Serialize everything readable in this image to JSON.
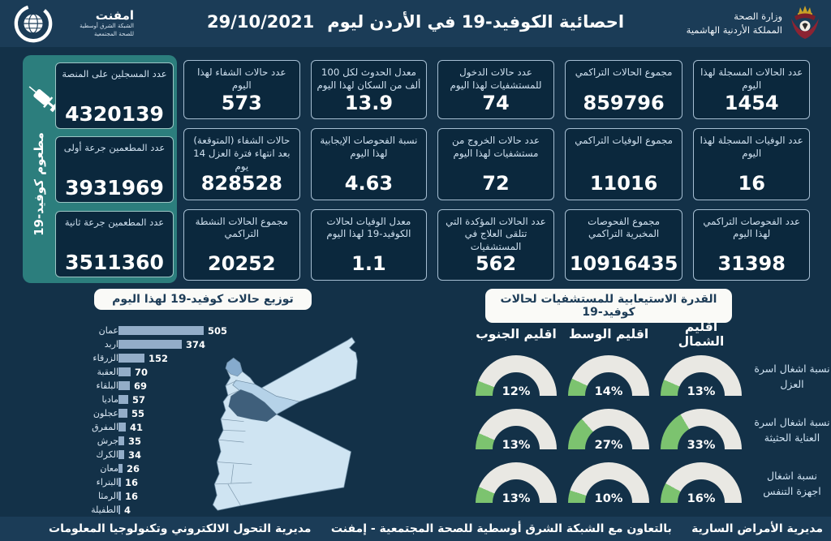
{
  "header": {
    "title": "احصائية الكوفيد-19 في الأردن ليوم",
    "date": "29/10/2021",
    "logo_name": "امفنت",
    "logo_sub1": "الشبكة الشرق أوسطية",
    "logo_sub2": "للصحة المجتمعية",
    "ministry_line1": "وزارة الصحة",
    "ministry_line2": "المملكة الأردنية الهاشمية"
  },
  "vaccination_panel": {
    "side_label": "مطعوم كوفيد-19",
    "cards": [
      {
        "title": "عدد المسجلين على المنصة",
        "value": "4320139"
      },
      {
        "title": "عدد المطعمين جرعة أولى",
        "value": "3931969"
      },
      {
        "title": "عدد المطعمين جرعة ثانية",
        "value": "3511360"
      }
    ]
  },
  "stat_cards": [
    {
      "title": "عدد الحالات المسجلة لهذا اليوم",
      "value": "1454"
    },
    {
      "title": "مجموع الحالات التراكمي",
      "value": "859796"
    },
    {
      "title": "عدد حالات الدخول للمستشفيات لهذا اليوم",
      "value": "74"
    },
    {
      "title": "معدل الحدوث لكل 100 ألف من السكان لهذا اليوم",
      "value": "13.9"
    },
    {
      "title": "عدد حالات الشفاء لهذا اليوم",
      "value": "573"
    },
    {
      "title": "عدد الوفيات المسجلة لهذا اليوم",
      "value": "16"
    },
    {
      "title": "مجموع الوفيات التراكمي",
      "value": "11016"
    },
    {
      "title": "عدد حالات الخروج من مستشفيات لهذا اليوم",
      "value": "72"
    },
    {
      "title": "نسبة الفحوصات الإيجابية لهذا اليوم",
      "value": "4.63"
    },
    {
      "title": "حالات الشفاء (المتوقعة) بعد انتهاء فترة العزل 14 يوم",
      "value": "828528"
    },
    {
      "title": "عدد الفحوصات التراكمي لهذا اليوم",
      "value": "31398"
    },
    {
      "title": "مجموع الفحوصات المخبرية التراكمي",
      "value": "10916435"
    },
    {
      "title": "عدد الحالات المؤكدة التي تتلقى العلاج في المستشفيات",
      "value": "562"
    },
    {
      "title": "معدل الوفيات لحالات الكوفيد-19 لهذا اليوم",
      "value": "1.1"
    },
    {
      "title": "مجموع الحالات النشطة التراكمي",
      "value": "20252"
    }
  ],
  "chart_data": [
    {
      "type": "bar",
      "orientation": "horizontal",
      "title": "توزيع حالات كوفيد-19 لهذا اليوم",
      "categories": [
        "عمان",
        "اربد",
        "الزرقاء",
        "العقبة",
        "البلقاء",
        "ماديا",
        "عجلون",
        "المفرق",
        "جرش",
        "الكرك",
        "معان",
        "البتراء",
        "الرمثا",
        "الطفيلة"
      ],
      "values": [
        505,
        374,
        152,
        70,
        69,
        57,
        55,
        41,
        35,
        34,
        26,
        16,
        16,
        4
      ],
      "xlim": [
        0,
        505
      ],
      "grid": false,
      "bar_color": "#93adc8"
    },
    {
      "type": "gauge",
      "title": "القدرة الاستيعابية للمستشفيات لحالات كوفيد-19",
      "columns": [
        "اقليم الجنوب",
        "اقليم الوسط",
        "اقليم الشمال"
      ],
      "rows": [
        {
          "label": "نسبة اشغال اسرة العزل",
          "values": [
            12,
            14,
            13
          ]
        },
        {
          "label": "نسبة اشغال اسرة العناية الحثيثة",
          "values": [
            13,
            27,
            33
          ]
        },
        {
          "label": "نسبة اشغال اجهزة التنفس",
          "values": [
            13,
            10,
            16
          ]
        }
      ],
      "unit": "%",
      "range": [
        0,
        100
      ]
    }
  ],
  "bar_section_title": "توزيع حالات كوفيد-19 لهذا اليوم",
  "gauge_section_title": "القدرة الاستيعابية للمستشفيات لحالات كوفيد-19",
  "footer": {
    "right": "مديرية الأمراض السارية",
    "center": "بالتعاون مع الشبكة الشرق أوسطية للصحة المجتمعية - إمفنت",
    "left": "مديرية التحول الالكتروني وتكنولوجيا المعلومات"
  },
  "colors": {
    "page_bg": "#133148",
    "band_bg": "#1b3c57",
    "card_bg": "#0b283d",
    "card_border": "#a6bed2",
    "panel_teal": "#2c7e7d",
    "bar": "#93adc8",
    "gauge_green": "#7cc36f",
    "gauge_track": "#e9e8e3",
    "map_light": "#cfe4f2",
    "map_amman": "#3f5f7b",
    "map_irbid": "#86abcd",
    "map_zarqa": "#b5d2e8"
  }
}
